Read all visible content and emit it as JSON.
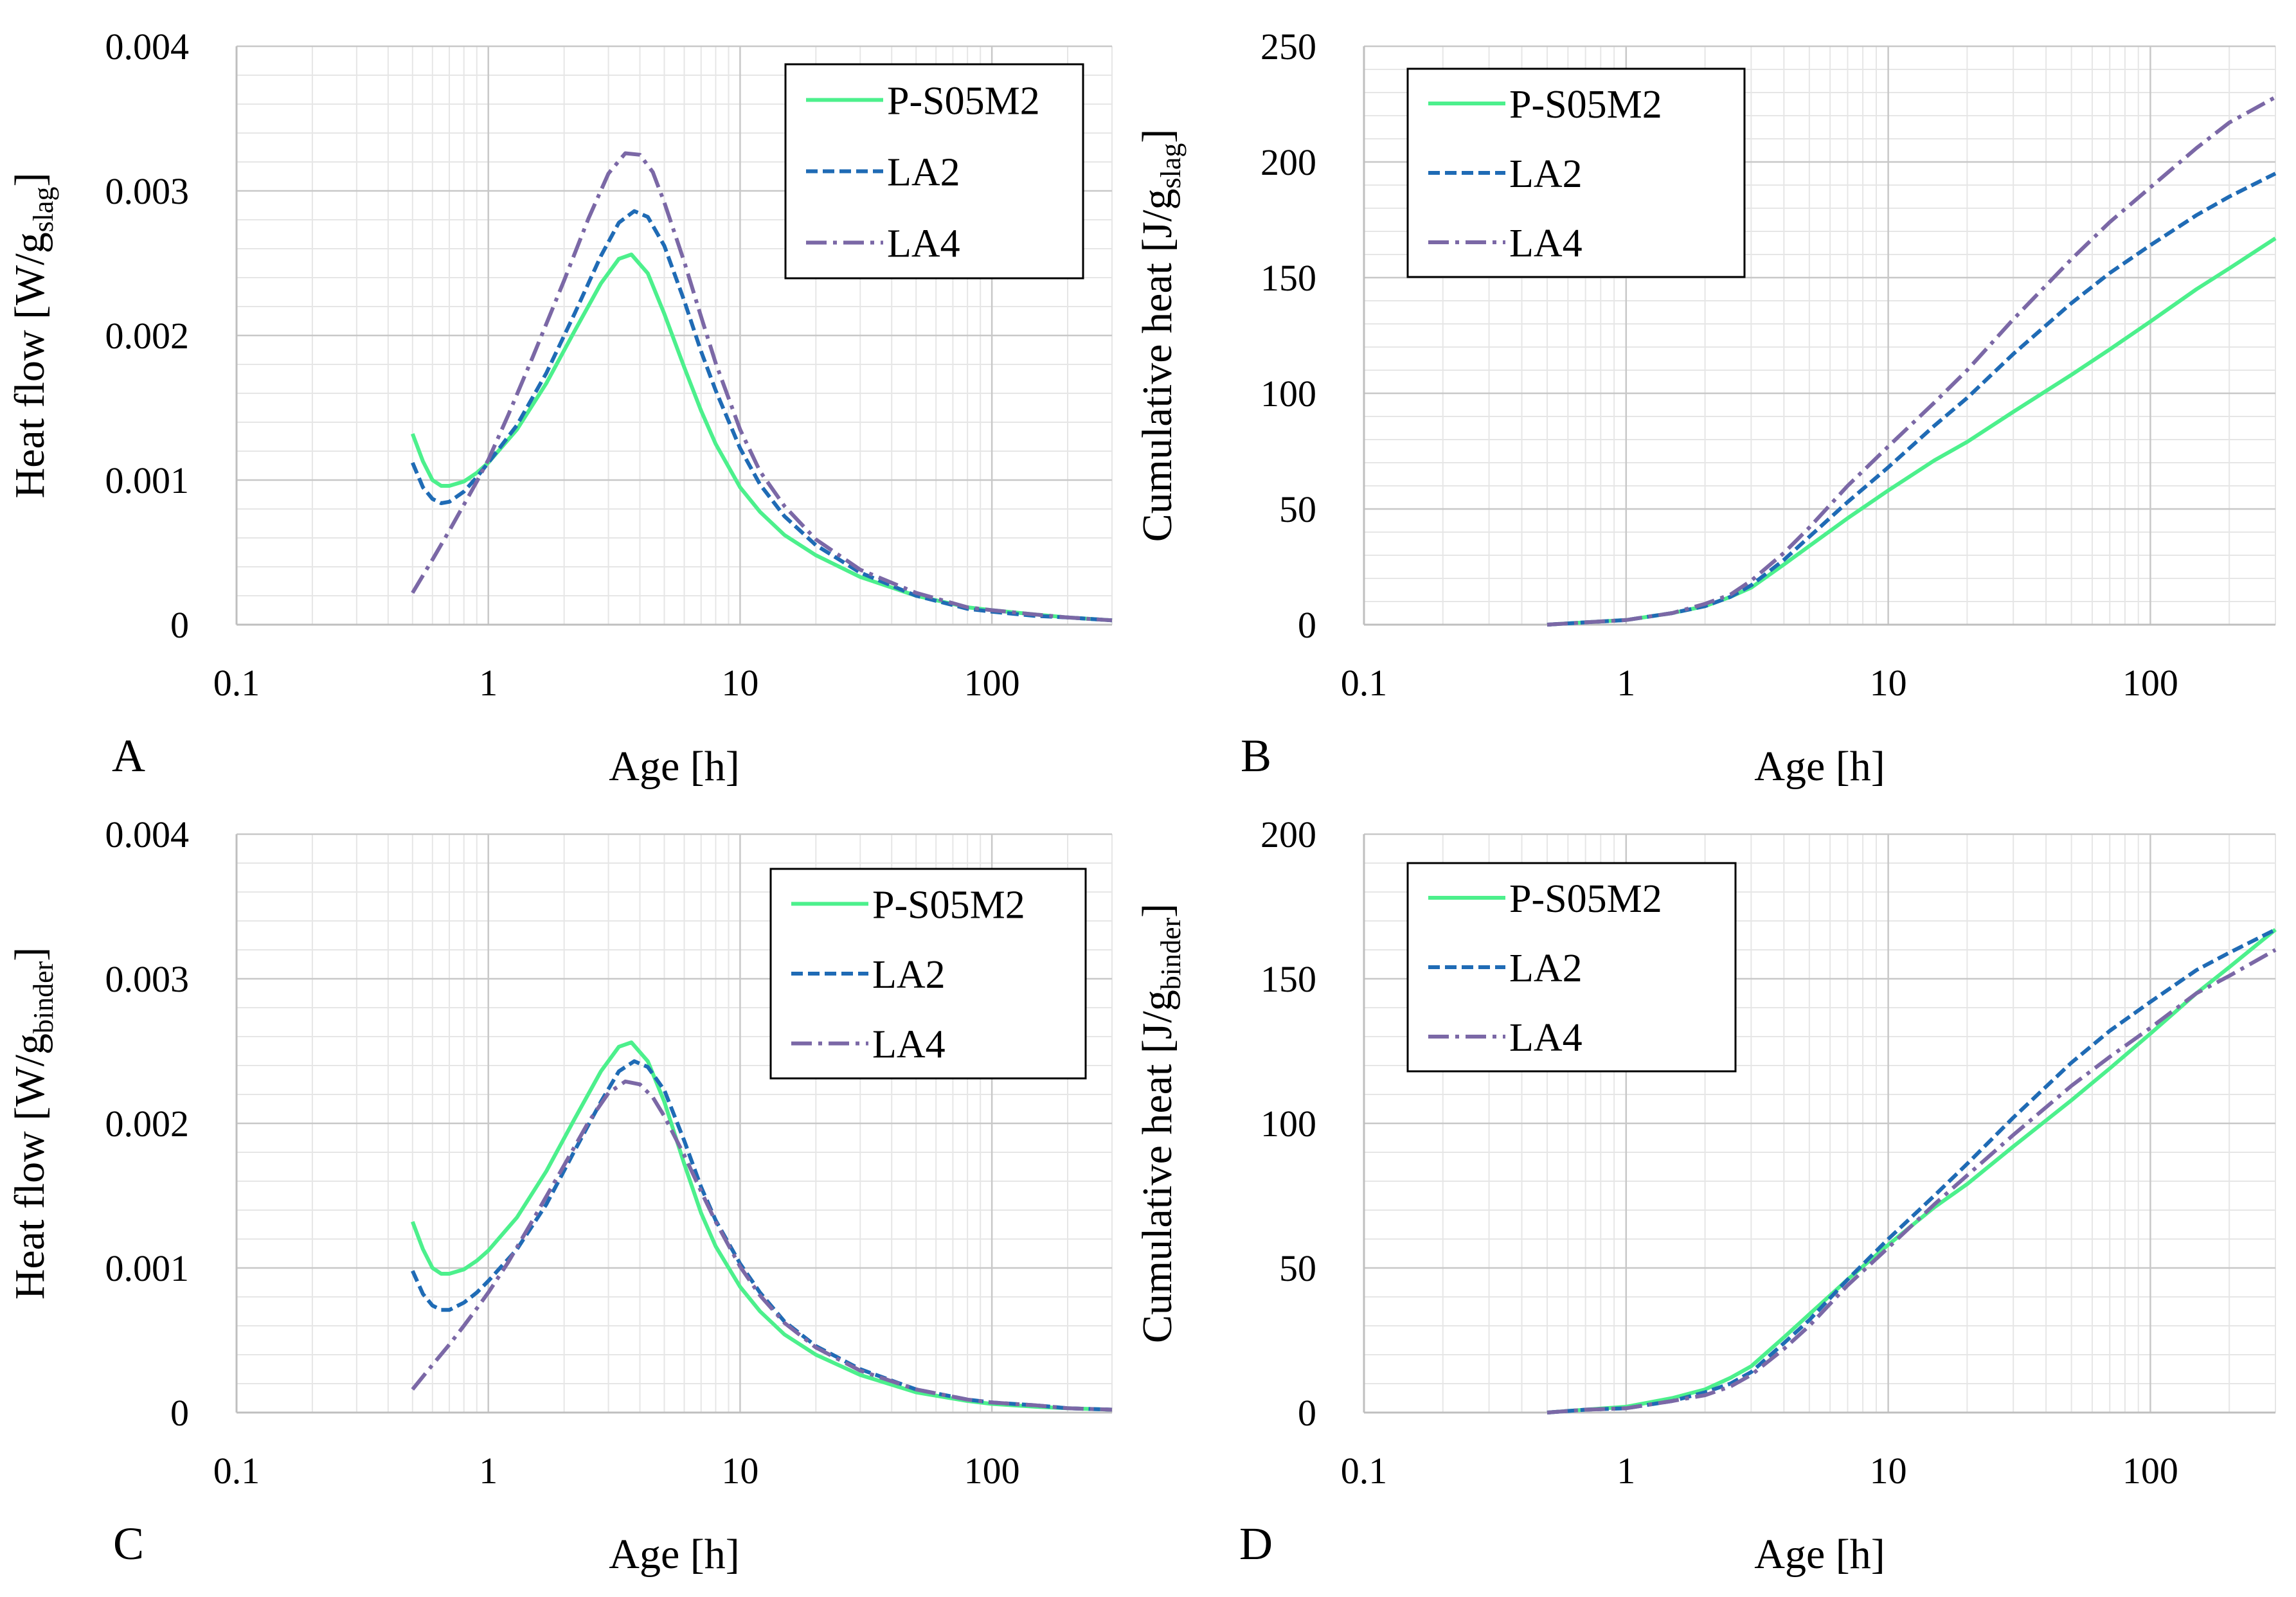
{
  "colors": {
    "P-S05M2": "#4CF08C",
    "LA2": "#1F6BB5",
    "LA4": "#7B68A6",
    "grid_major": "#C8C8C8",
    "grid_minor": "#E6E6E6"
  },
  "chart_data": [
    {
      "type": "line",
      "panel_letter": "A",
      "xscale": "log",
      "xlim": [
        0.1,
        300
      ],
      "ylim": [
        0,
        0.004
      ],
      "xticks": [
        "0.1",
        "1",
        "10",
        "100"
      ],
      "yticks": [
        "0",
        "0.001",
        "0.002",
        "0.003",
        "0.004"
      ],
      "xlabel": "Age [h]",
      "ylabel": "Heat flow [W/g",
      "ylabel_sub": "slag",
      "ylabel_end": "]",
      "grid": true,
      "legend_position": "top-right",
      "series": [
        {
          "name": "P-S05M2",
          "style": "solid",
          "x": [
            0.5,
            0.55,
            0.6,
            0.65,
            0.7,
            0.8,
            0.9,
            1,
            1.3,
            1.7,
            2.2,
            2.8,
            3.3,
            3.7,
            4.3,
            5,
            6,
            7,
            8,
            10,
            12,
            15,
            20,
            30,
            50,
            80,
            100,
            150,
            200,
            300
          ],
          "y": [
            0.00132,
            0.00113,
            0.001,
            0.00096,
            0.00096,
            0.00099,
            0.00105,
            0.00112,
            0.00135,
            0.00167,
            0.00203,
            0.00236,
            0.00253,
            0.00256,
            0.00243,
            0.00215,
            0.00178,
            0.00148,
            0.00125,
            0.00095,
            0.00078,
            0.00062,
            0.00048,
            0.00033,
            0.0002,
            0.00012,
            0.0001,
            7e-05,
            5e-05,
            3e-05
          ]
        },
        {
          "name": "LA2",
          "style": "dashed",
          "x": [
            0.5,
            0.55,
            0.6,
            0.65,
            0.7,
            0.8,
            0.9,
            1,
            1.3,
            1.7,
            2.2,
            2.8,
            3.3,
            3.8,
            4.3,
            5,
            6,
            7,
            8,
            10,
            12,
            15,
            20,
            30,
            50,
            80,
            100,
            150,
            200,
            300
          ],
          "y": [
            0.00112,
            0.00095,
            0.00087,
            0.00084,
            0.00085,
            0.00092,
            0.00102,
            0.00112,
            0.00138,
            0.00174,
            0.00215,
            0.00255,
            0.00278,
            0.00286,
            0.00282,
            0.00262,
            0.00224,
            0.00189,
            0.00162,
            0.00122,
            0.00097,
            0.00075,
            0.00055,
            0.00036,
            0.0002,
            0.00011,
            9e-05,
            6e-05,
            5e-05,
            3e-05
          ]
        },
        {
          "name": "LA4",
          "style": "dashdot",
          "x": [
            0.5,
            0.6,
            0.7,
            0.8,
            0.9,
            1,
            1.2,
            1.5,
            2,
            2.5,
            3,
            3.5,
            4,
            4.5,
            5,
            6,
            7,
            8,
            10,
            12,
            15,
            20,
            30,
            50,
            80,
            100,
            150,
            200,
            300
          ],
          "y": [
            0.00022,
            0.00045,
            0.00065,
            0.00083,
            0.00099,
            0.00114,
            0.00145,
            0.00185,
            0.00238,
            0.00281,
            0.00312,
            0.00326,
            0.00325,
            0.00313,
            0.00292,
            0.00251,
            0.00213,
            0.00181,
            0.00135,
            0.00106,
            0.00082,
            0.00059,
            0.00038,
            0.00022,
            0.00012,
            0.0001,
            7e-05,
            5e-05,
            3e-05
          ]
        }
      ]
    },
    {
      "type": "line",
      "panel_letter": "B",
      "xscale": "log",
      "xlim": [
        0.1,
        300
      ],
      "ylim": [
        0,
        250
      ],
      "xticks": [
        "0.1",
        "1",
        "10",
        "100"
      ],
      "yticks": [
        "0",
        "50",
        "100",
        "150",
        "200",
        "250"
      ],
      "xlabel": "Age [h]",
      "ylabel": "Cumulative heat [J/g",
      "ylabel_sub": "slag",
      "ylabel_end": "]",
      "grid": true,
      "legend_position": "top-left",
      "series": [
        {
          "name": "P-S05M2",
          "style": "solid",
          "x": [
            0.5,
            0.7,
            1,
            1.5,
            2,
            2.5,
            3,
            4,
            5,
            7,
            10,
            15,
            20,
            30,
            50,
            70,
            100,
            150,
            200,
            300
          ],
          "y": [
            0,
            1,
            2,
            5,
            8,
            12,
            16,
            26,
            34,
            46,
            58,
            71,
            79,
            92,
            108,
            119,
            131,
            145,
            154,
            167
          ]
        },
        {
          "name": "LA2",
          "style": "dashed",
          "x": [
            0.5,
            0.7,
            1,
            1.5,
            2,
            2.5,
            3,
            4,
            5,
            7,
            10,
            15,
            20,
            30,
            50,
            70,
            100,
            150,
            200,
            300
          ],
          "y": [
            0,
            1,
            2,
            5,
            8,
            12,
            17,
            28,
            38,
            53,
            68,
            86,
            98,
            117,
            139,
            152,
            164,
            177,
            185,
            195
          ]
        },
        {
          "name": "LA4",
          "style": "dashdot",
          "x": [
            0.5,
            0.7,
            1,
            1.5,
            2,
            2.5,
            3,
            4,
            5,
            7,
            10,
            15,
            20,
            30,
            50,
            70,
            100,
            150,
            200,
            300
          ],
          "y": [
            0,
            1,
            2,
            5,
            9,
            13,
            19,
            31,
            42,
            60,
            77,
            96,
            110,
            132,
            158,
            174,
            189,
            206,
            217,
            228
          ]
        }
      ]
    },
    {
      "type": "line",
      "panel_letter": "C",
      "xscale": "log",
      "xlim": [
        0.1,
        300
      ],
      "ylim": [
        0,
        0.004
      ],
      "xticks": [
        "0.1",
        "1",
        "10",
        "100"
      ],
      "yticks": [
        "0",
        "0.001",
        "0.002",
        "0.003",
        "0.004"
      ],
      "xlabel": "Age [h]",
      "ylabel": "Heat flow [W/g",
      "ylabel_sub": "binder",
      "ylabel_end": "]",
      "grid": true,
      "legend_position": "top-right",
      "series": [
        {
          "name": "P-S05M2",
          "style": "solid",
          "x": [
            0.5,
            0.55,
            0.6,
            0.65,
            0.7,
            0.8,
            0.9,
            1,
            1.3,
            1.7,
            2.2,
            2.8,
            3.3,
            3.7,
            4.3,
            5,
            6,
            7,
            8,
            10,
            12,
            15,
            20,
            30,
            50,
            80,
            100,
            150,
            200,
            300
          ],
          "y": [
            0.00132,
            0.00113,
            0.001,
            0.00096,
            0.00096,
            0.00099,
            0.00105,
            0.00112,
            0.00135,
            0.00167,
            0.00203,
            0.00236,
            0.00253,
            0.00256,
            0.00243,
            0.00215,
            0.00172,
            0.00138,
            0.00115,
            0.00087,
            0.0007,
            0.00054,
            0.0004,
            0.00026,
            0.00014,
            8e-05,
            6e-05,
            4e-05,
            3e-05,
            2e-05
          ]
        },
        {
          "name": "LA2",
          "style": "dashed",
          "x": [
            0.5,
            0.55,
            0.6,
            0.65,
            0.7,
            0.8,
            0.9,
            1,
            1.3,
            1.7,
            2.2,
            2.8,
            3.3,
            3.8,
            4.3,
            5,
            6,
            7,
            8,
            10,
            12,
            15,
            20,
            30,
            50,
            80,
            100,
            150,
            200,
            300
          ],
          "y": [
            0.00098,
            0.00082,
            0.00074,
            0.00071,
            0.00071,
            0.00076,
            0.00083,
            0.00091,
            0.00113,
            0.00144,
            0.00181,
            0.00215,
            0.00236,
            0.00243,
            0.00239,
            0.00223,
            0.00188,
            0.00156,
            0.00133,
            0.00103,
            0.00083,
            0.00063,
            0.00046,
            0.0003,
            0.00016,
            9e-05,
            7e-05,
            5e-05,
            3e-05,
            2e-05
          ]
        },
        {
          "name": "LA4",
          "style": "dashdot",
          "x": [
            0.5,
            0.6,
            0.7,
            0.8,
            0.9,
            1,
            1.2,
            1.5,
            2,
            2.5,
            3,
            3.5,
            4,
            4.5,
            5,
            6,
            7,
            8,
            10,
            12,
            15,
            20,
            30,
            50,
            80,
            100,
            150,
            200,
            300
          ],
          "y": [
            0.00016,
            0.00033,
            0.00047,
            0.0006,
            0.00072,
            0.00083,
            0.00104,
            0.00133,
            0.00171,
            0.00201,
            0.00221,
            0.00229,
            0.00227,
            0.00218,
            0.00205,
            0.00178,
            0.00153,
            0.00132,
            0.00101,
            0.00081,
            0.00062,
            0.00045,
            0.00029,
            0.00016,
            9e-05,
            7e-05,
            5e-05,
            3e-05,
            2e-05
          ]
        }
      ]
    },
    {
      "type": "line",
      "panel_letter": "D",
      "xscale": "log",
      "xlim": [
        0.1,
        300
      ],
      "ylim": [
        0,
        200
      ],
      "xticks": [
        "0.1",
        "1",
        "10",
        "100"
      ],
      "yticks": [
        "0",
        "50",
        "100",
        "150",
        "200"
      ],
      "xlabel": "Age [h]",
      "ylabel": "Cumulative heat [J/g",
      "ylabel_sub": "binder",
      "ylabel_end": "]",
      "grid": true,
      "legend_position": "top-left",
      "series": [
        {
          "name": "P-S05M2",
          "style": "solid",
          "x": [
            0.5,
            0.7,
            1,
            1.5,
            2,
            2.5,
            3,
            4,
            5,
            7,
            10,
            15,
            20,
            30,
            50,
            70,
            100,
            150,
            200,
            300
          ],
          "y": [
            0,
            1,
            2,
            5,
            8,
            12,
            16,
            26,
            34,
            46,
            58,
            71,
            79,
            92,
            108,
            119,
            131,
            145,
            154,
            167
          ]
        },
        {
          "name": "LA2",
          "style": "dashed",
          "x": [
            0.5,
            0.7,
            1,
            1.5,
            2,
            2.5,
            3,
            4,
            5,
            7,
            10,
            15,
            20,
            30,
            50,
            70,
            100,
            150,
            200,
            300
          ],
          "y": [
            0,
            1,
            1.5,
            4,
            7,
            10,
            14,
            24,
            32,
            46,
            60,
            75,
            86,
            102,
            121,
            132,
            142,
            153,
            159,
            167
          ]
        },
        {
          "name": "LA4",
          "style": "dashdot",
          "x": [
            0.5,
            0.7,
            1,
            1.5,
            2,
            2.5,
            3,
            4,
            5,
            7,
            10,
            15,
            20,
            30,
            50,
            70,
            100,
            150,
            200,
            300
          ],
          "y": [
            0,
            1,
            1.5,
            4,
            6,
            9,
            13,
            22,
            30,
            44,
            57,
            72,
            82,
            96,
            113,
            123,
            133,
            145,
            151,
            160
          ]
        }
      ]
    }
  ]
}
